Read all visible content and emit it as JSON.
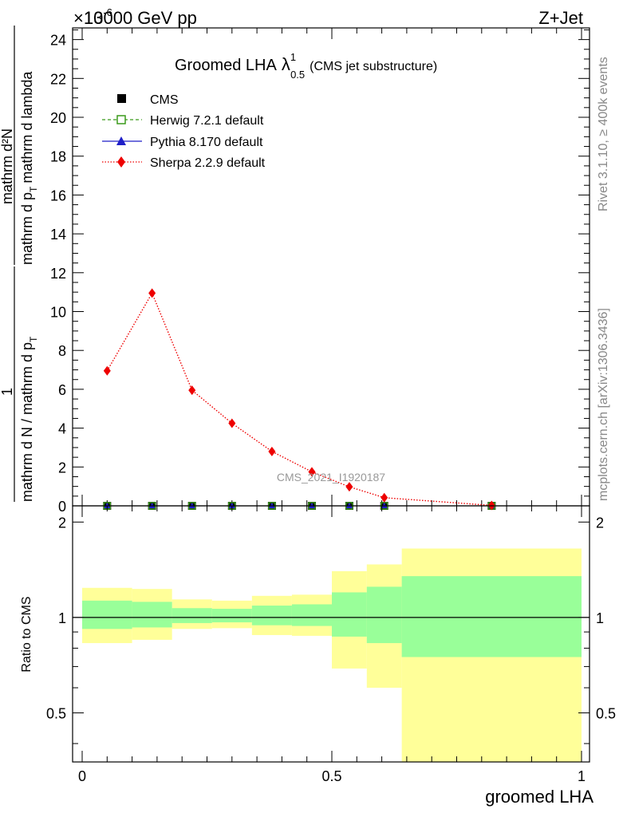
{
  "header": {
    "left": "13000 GeV pp",
    "right": "Z+Jet",
    "exponent": "×10",
    "exponent_power": "-6"
  },
  "side_labels": {
    "rivet": "Rivet 3.1.10, ≥ 400k events",
    "mcplots": "mcplots.cern.ch [arXiv:1306.3436]"
  },
  "chart_data": [
    {
      "type": "line",
      "title_main": "Groomed LHA",
      "title_symbol": "λ",
      "title_sup": "1",
      "title_sub": "0.5",
      "title_paren": "(CMS jet substructure)",
      "ylabel_numerator": "1",
      "ylabel_denominator": "mathrm d N / mathrm d p",
      "ylabel_numerator_b": "mathrm d²N",
      "ylabel_denominator_b": "mathrm d p",
      "ylabel_sub_T": "T",
      "ylabel_rest_b": "mathrm d p",
      "ylabel_tail": "mathrm d lambda",
      "ylim": [
        0,
        24.6
      ],
      "yticks": [
        "0",
        "2",
        "4",
        "6",
        "8",
        "10",
        "12",
        "14",
        "16",
        "18",
        "20",
        "22",
        "24"
      ],
      "xlim": [
        -0.01,
        1.0
      ],
      "watermark": "CMS_2021_I1920187",
      "legend": {
        "position": "top-left",
        "entries": [
          {
            "name": "CMS",
            "color": "#000000",
            "marker": "square"
          },
          {
            "name": "Herwig 7.2.1 default",
            "color": "#3a9a1a",
            "marker": "open-square"
          },
          {
            "name": "Pythia 8.170 default",
            "color": "#1f1fc8",
            "marker": "triangle"
          },
          {
            "name": "Sherpa 2.2.9 default",
            "color": "#ee0000",
            "marker": "diamond"
          }
        ]
      },
      "series": [
        {
          "name": "CMS",
          "x": [
            0.05,
            0.14,
            0.22,
            0.3,
            0.38,
            0.46,
            0.535,
            0.605,
            0.82
          ],
          "y": [
            0,
            0,
            0,
            0,
            0,
            0,
            0,
            0,
            0
          ]
        },
        {
          "name": "Herwig 7.2.1 default",
          "x": [
            0.05,
            0.14,
            0.22,
            0.3,
            0.38,
            0.46,
            0.535,
            0.605,
            0.82
          ],
          "y": [
            0,
            0,
            0,
            0,
            0,
            0,
            0,
            0,
            0
          ]
        },
        {
          "name": "Pythia 8.170 default",
          "x": [
            0.05,
            0.14,
            0.22,
            0.3,
            0.38,
            0.46,
            0.535,
            0.605,
            0.82
          ],
          "y": [
            0,
            0,
            0,
            0,
            0,
            0,
            0,
            0,
            0
          ]
        },
        {
          "name": "Sherpa 2.2.9 default",
          "x": [
            0.05,
            0.14,
            0.22,
            0.3,
            0.38,
            0.46,
            0.535,
            0.605,
            0.82
          ],
          "y": [
            6.95,
            10.95,
            5.95,
            4.25,
            2.8,
            1.75,
            0.98,
            0.42,
            0.02
          ]
        }
      ]
    },
    {
      "type": "area",
      "ylabel": "Ratio to CMS",
      "xlabel": "groomed LHA",
      "ylim": [
        0.35,
        2.25
      ],
      "yticks": [
        "0.5",
        "1",
        "2"
      ],
      "xlim": [
        -0.01,
        1.0
      ],
      "xticks": [
        "0",
        "0.5",
        "1"
      ],
      "colors": {
        "inner": "#99ff99",
        "outer": "#ffff99"
      },
      "bins": [
        {
          "lo": 0.0,
          "hi": 0.1,
          "inner": [
            0.92,
            1.13
          ],
          "outer": [
            0.83,
            1.24
          ]
        },
        {
          "lo": 0.1,
          "hi": 0.18,
          "inner": [
            0.93,
            1.12
          ],
          "outer": [
            0.85,
            1.23
          ]
        },
        {
          "lo": 0.18,
          "hi": 0.26,
          "inner": [
            0.96,
            1.07
          ],
          "outer": [
            0.92,
            1.14
          ]
        },
        {
          "lo": 0.26,
          "hi": 0.34,
          "inner": [
            0.965,
            1.065
          ],
          "outer": [
            0.925,
            1.13
          ]
        },
        {
          "lo": 0.34,
          "hi": 0.42,
          "inner": [
            0.945,
            1.09
          ],
          "outer": [
            0.88,
            1.17
          ]
        },
        {
          "lo": 0.42,
          "hi": 0.5,
          "inner": [
            0.94,
            1.1
          ],
          "outer": [
            0.875,
            1.18
          ]
        },
        {
          "lo": 0.5,
          "hi": 0.57,
          "inner": [
            0.87,
            1.2
          ],
          "outer": [
            0.69,
            1.4
          ]
        },
        {
          "lo": 0.57,
          "hi": 0.64,
          "inner": [
            0.83,
            1.25
          ],
          "outer": [
            0.6,
            1.47
          ]
        },
        {
          "lo": 0.64,
          "hi": 1.0,
          "inner": [
            0.75,
            1.35
          ],
          "outer": [
            0.35,
            1.65
          ]
        }
      ],
      "reference": 1
    }
  ]
}
